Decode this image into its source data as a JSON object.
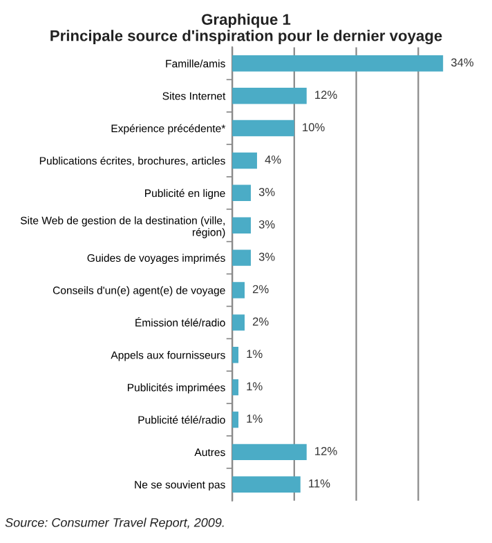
{
  "chart_data": {
    "type": "bar",
    "orientation": "horizontal",
    "title": "Graphique 1",
    "subtitle": "Principale source d'inspiration pour le dernier voyage",
    "categories": [
      "Famille/amis",
      "Sites Internet",
      "Expérience précédente*",
      "Publications écrites, brochures, articles",
      "Publicité en ligne",
      "Site Web de gestion de la destination (ville,\nrégion)",
      "Guides de voyages imprimés",
      "Conseils d'un(e) agent(e) de voyage",
      "Émission télé/radio",
      "Appels aux fournisseurs",
      "Publicités imprimées",
      "Publicité télé/radio",
      "Autres",
      "Ne se souvient pas"
    ],
    "values": [
      34,
      12,
      10,
      4,
      3,
      3,
      3,
      2,
      2,
      1,
      1,
      1,
      12,
      11
    ],
    "value_labels": [
      "34%",
      "12%",
      "10%",
      "4%",
      "3%",
      "3%",
      "3%",
      "2%",
      "2%",
      "1%",
      "1%",
      "1%",
      "12%",
      "11%"
    ],
    "color": "#4bacc6",
    "xticks": [
      {
        "value": 0,
        "label": null
      },
      {
        "value": 10,
        "label": null
      },
      {
        "value": 20,
        "label": null
      },
      {
        "value": 30,
        "label": null
      }
    ],
    "grid": "x",
    "tick_labels": "y",
    "annotations": [
      "Source: Consumer Travel Report, 2009."
    ]
  }
}
